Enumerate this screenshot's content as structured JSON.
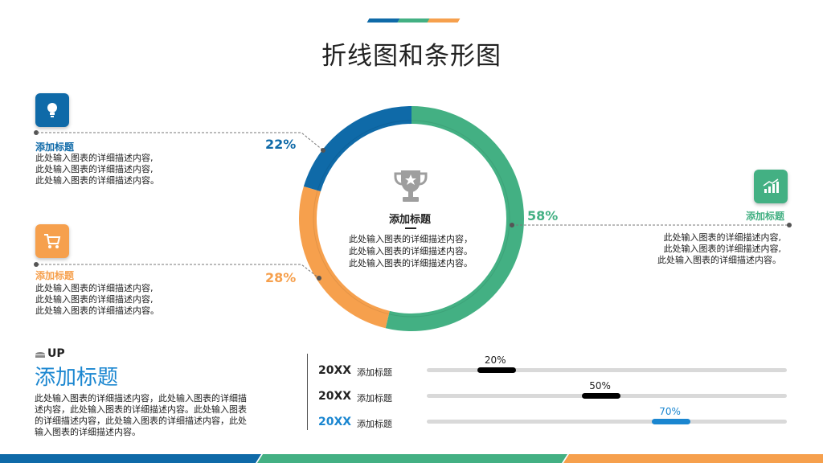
{
  "colors": {
    "blue": "#0f6aa8",
    "green": "#43b083",
    "orange": "#f6a04d",
    "dark": "#222222",
    "track": "#d9d9d9",
    "accent_blue": "#1a86d0"
  },
  "slide": {
    "title": "折线图和条形图"
  },
  "donut": {
    "center_icon": "trophy-icon",
    "center_title": "添加标题",
    "center_desc": "此处输入图表的详细描述内容，此处输入图表的详细描述内容。此处输入图表的详细描述内容。",
    "segments": [
      {
        "color": "#43b083",
        "value": 58
      },
      {
        "color": "#f6a04d",
        "value": 28
      },
      {
        "color": "#0f6aa8",
        "value": 22
      }
    ]
  },
  "callouts": {
    "top_left": {
      "icon": "lightbulb-icon",
      "title": "添加标题",
      "desc": [
        "此处输入图表的详细描述内容,",
        "此处输入图表的详细描述内容,",
        "此处输入图表的详细描述内容。"
      ],
      "pct": "22%"
    },
    "mid_left": {
      "icon": "cart-icon",
      "title": "添加标题",
      "desc": [
        "此处输入图表的详细描述内容,",
        "此处输入图表的详细描述内容,",
        "此处输入图表的详细描述内容。"
      ],
      "pct": "28%"
    },
    "right": {
      "icon": "bar-chart-icon",
      "title": "添加标题",
      "desc": [
        "此处输入图表的详细描述内容,",
        "此处输入图表的详细描述内容,",
        "此处输入图表的详细描述内容。"
      ],
      "pct": "58%"
    }
  },
  "bottom_left": {
    "tag": "UP",
    "tag_icon": "stack-icon",
    "heading": "添加标题",
    "desc": [
      "此处输入图表的详细描述内容，此处输入图表的详细描",
      "述内容，此处输入图表的详细描述内容。此处输入图表",
      "的详细描述内容，此处输入图表的详细描述内容，此处",
      "输入图表的详细描述内容。"
    ]
  },
  "chart_data": {
    "type": "bar",
    "categories": [
      "20XX 添加标题",
      "20XX 添加标题",
      "20XX 添加标题"
    ],
    "values": [
      20,
      50,
      70
    ],
    "value_labels": [
      "20%",
      "50%",
      "70%"
    ],
    "xlim": [
      0,
      100
    ],
    "rows": [
      {
        "year": "20XX",
        "label": "添加标题",
        "pct_text": "20%",
        "value": 20,
        "color": "#000000"
      },
      {
        "year": "20XX",
        "label": "添加标题",
        "pct_text": "50%",
        "value": 50,
        "color": "#000000"
      },
      {
        "year": "20XX",
        "label": "添加标题",
        "pct_text": "70%",
        "value": 70,
        "color": "#1a86d0"
      }
    ]
  }
}
